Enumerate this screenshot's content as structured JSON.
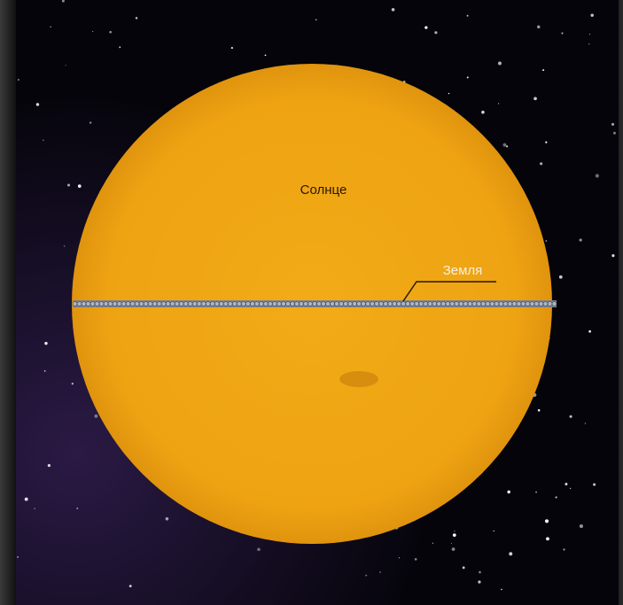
{
  "labels": {
    "sun": "Солнце",
    "earth": "Земля"
  }
}
